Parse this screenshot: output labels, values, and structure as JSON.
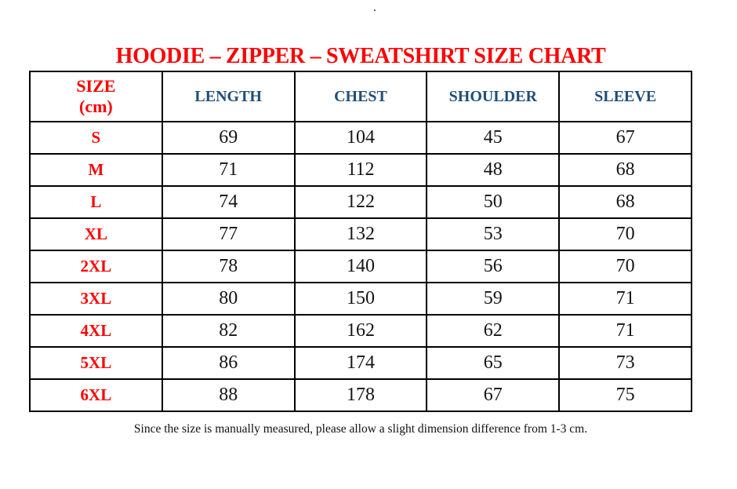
{
  "page": {
    "top_mark": ".",
    "title": "HOODIE – ZIPPER – SWEATSHIRT SIZE CHART",
    "footer_note": "Since the size is manually measured, please allow a slight dimension difference from 1-3 cm."
  },
  "colors": {
    "title_red": "#fe0000",
    "size_label_red": "#fe0000",
    "column_header_blue": "#1f4e79",
    "value_ink": "#141414",
    "table_border": "#000000",
    "background": "#ffffff"
  },
  "table": {
    "size_header_line1": "SIZE",
    "size_header_line2": "(cm)",
    "columns": [
      "LENGTH",
      "CHEST",
      "SHOULDER",
      "SLEEVE"
    ],
    "rows": [
      {
        "size": "S",
        "length": "69",
        "chest": "104",
        "shoulder": "45",
        "sleeve": "67"
      },
      {
        "size": "M",
        "length": "71",
        "chest": "112",
        "shoulder": "48",
        "sleeve": "68"
      },
      {
        "size": "L",
        "length": "74",
        "chest": "122",
        "shoulder": "50",
        "sleeve": "68"
      },
      {
        "size": "XL",
        "length": "77",
        "chest": "132",
        "shoulder": "53",
        "sleeve": "70"
      },
      {
        "size": "2XL",
        "length": "78",
        "chest": "140",
        "shoulder": "56",
        "sleeve": "70"
      },
      {
        "size": "3XL",
        "length": "80",
        "chest": "150",
        "shoulder": "59",
        "sleeve": "71"
      },
      {
        "size": "4XL",
        "length": "82",
        "chest": "162",
        "shoulder": "62",
        "sleeve": "71"
      },
      {
        "size": "5XL",
        "length": "86",
        "chest": "174",
        "shoulder": "65",
        "sleeve": "73"
      },
      {
        "size": "6XL",
        "length": "88",
        "chest": "178",
        "shoulder": "67",
        "sleeve": "75"
      }
    ]
  }
}
